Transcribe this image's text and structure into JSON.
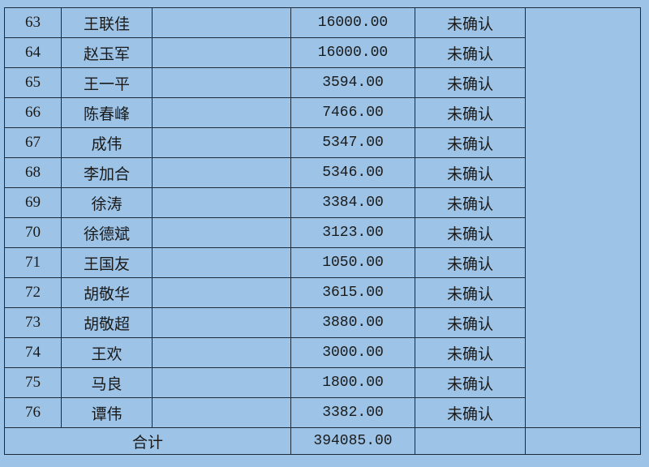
{
  "rows": [
    {
      "no": "63",
      "name": "王联佳",
      "amount": "16000.00",
      "status": "未确认"
    },
    {
      "no": "64",
      "name": "赵玉军",
      "amount": "16000.00",
      "status": "未确认"
    },
    {
      "no": "65",
      "name": "王一平",
      "amount": "3594.00",
      "status": "未确认"
    },
    {
      "no": "66",
      "name": "陈春峰",
      "amount": "7466.00",
      "status": "未确认"
    },
    {
      "no": "67",
      "name": "成伟",
      "amount": "5347.00",
      "status": "未确认"
    },
    {
      "no": "68",
      "name": "李加合",
      "amount": "5346.00",
      "status": "未确认"
    },
    {
      "no": "69",
      "name": "徐涛",
      "amount": "3384.00",
      "status": "未确认"
    },
    {
      "no": "70",
      "name": "徐德斌",
      "amount": "3123.00",
      "status": "未确认"
    },
    {
      "no": "71",
      "name": "王国友",
      "amount": "1050.00",
      "status": "未确认"
    },
    {
      "no": "72",
      "name": "胡敬华",
      "amount": "3615.00",
      "status": "未确认"
    },
    {
      "no": "73",
      "name": "胡敬超",
      "amount": "3880.00",
      "status": "未确认"
    },
    {
      "no": "74",
      "name": "王欢",
      "amount": "3000.00",
      "status": "未确认"
    },
    {
      "no": "75",
      "name": "马良",
      "amount": "1800.00",
      "status": "未确认"
    },
    {
      "no": "76",
      "name": "谭伟",
      "amount": "3382.00",
      "status": "未确认"
    }
  ],
  "total": {
    "label": "合计",
    "amount": "394085.00"
  },
  "colors": {
    "background": "#9dc3e6",
    "border": "#1c2a3a"
  }
}
